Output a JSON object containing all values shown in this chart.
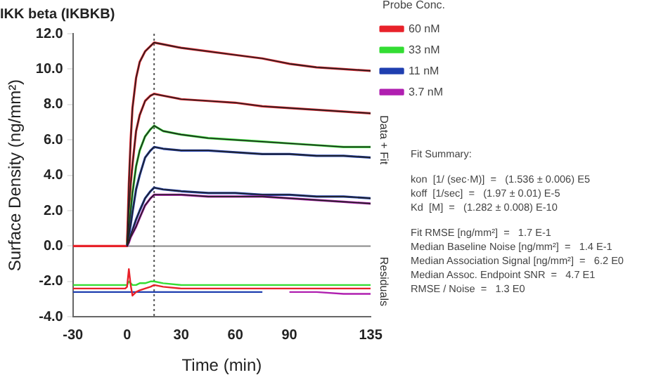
{
  "chart_data": {
    "type": "line",
    "title": "IKK beta (IKBKB)",
    "xlabel": "Time (min)",
    "ylabel": "Surface Density (ng/mm²)",
    "legend_title": "Probe Conc.",
    "legend": "top right",
    "grid": false,
    "marker": "none",
    "line_style": "solid",
    "x": [
      -30,
      -15,
      -1,
      0,
      1,
      2,
      3,
      5,
      7,
      10,
      13,
      15,
      20,
      30,
      45,
      60,
      75,
      90,
      105,
      120,
      135
    ],
    "xlim": [
      -30,
      135
    ],
    "xticks": [
      -30,
      0,
      30,
      60,
      90,
      135
    ],
    "ylim": [
      -4,
      12
    ],
    "yticks": [
      {
        "value": -4,
        "label": "-4.0"
      },
      {
        "value": -2,
        "label": "-2.0"
      },
      {
        "value": 0,
        "label": "0.0"
      },
      {
        "value": 2,
        "label": "2.0"
      },
      {
        "value": 4,
        "label": "4.0"
      },
      {
        "value": 6,
        "label": "6.0"
      },
      {
        "value": 8,
        "label": "8.0"
      },
      {
        "value": 10,
        "label": "10.0"
      },
      {
        "value": 12,
        "label": "12.0"
      }
    ],
    "ref_lines": [
      {
        "axis": "y",
        "value": 0,
        "color": "#888888",
        "line_style": "solid"
      },
      {
        "axis": "x",
        "value": 15,
        "color": "#555555",
        "line_style": "dotted"
      }
    ],
    "series": [
      {
        "name": "60 nM",
        "color": "#e8222a",
        "values": [
          0,
          0,
          0,
          0,
          3.5,
          6.0,
          7.8,
          9.5,
          10.4,
          11.0,
          11.3,
          11.5,
          11.4,
          11.2,
          11.0,
          10.8,
          10.6,
          10.3,
          10.1,
          10.0,
          9.9
        ]
      },
      {
        "color": "#e8222a",
        "values": [
          null,
          null,
          null,
          0,
          2.0,
          3.5,
          4.6,
          6.5,
          7.4,
          8.2,
          8.5,
          8.6,
          8.5,
          8.3,
          8.2,
          8.1,
          7.9,
          7.8,
          7.7,
          7.6,
          7.5
        ]
      },
      {
        "name": "33 nM",
        "color": "#33dd33",
        "values": [
          null,
          null,
          null,
          0,
          1.0,
          2.0,
          3.0,
          4.5,
          5.4,
          6.2,
          6.6,
          6.8,
          6.5,
          6.3,
          6.1,
          6.0,
          5.9,
          5.8,
          5.7,
          5.6,
          5.6
        ]
      },
      {
        "name": "11 nM",
        "color": "#1f3fb0",
        "values": [
          null,
          null,
          null,
          0,
          0.6,
          1.2,
          1.9,
          3.2,
          4.0,
          5.0,
          5.4,
          5.6,
          5.5,
          5.4,
          5.4,
          5.3,
          5.2,
          5.2,
          5.1,
          5.1,
          5.0
        ]
      },
      {
        "color": "#1f3fb0",
        "values": [
          null,
          null,
          null,
          0,
          0.3,
          0.6,
          0.9,
          1.5,
          2.0,
          2.7,
          3.1,
          3.3,
          3.2,
          3.1,
          3.0,
          3.0,
          2.9,
          2.9,
          2.8,
          2.8,
          2.7
        ]
      },
      {
        "name": "3.7 nM",
        "color": "#b01fb0",
        "values": [
          null,
          null,
          null,
          0,
          0.2,
          0.5,
          0.7,
          1.1,
          1.6,
          2.3,
          2.7,
          2.9,
          2.9,
          2.9,
          2.8,
          2.8,
          2.8,
          2.7,
          2.6,
          2.5,
          2.4
        ]
      },
      {
        "color": "#222222",
        "values": [
          null,
          null,
          null,
          0,
          3.5,
          6.0,
          7.8,
          9.5,
          10.4,
          11.0,
          11.3,
          11.5,
          11.4,
          11.2,
          11.0,
          10.8,
          10.6,
          10.3,
          10.1,
          10.0,
          9.9
        ]
      },
      {
        "color": "#222222",
        "values": [
          null,
          null,
          null,
          0,
          2.0,
          3.5,
          4.6,
          6.5,
          7.4,
          8.2,
          8.5,
          8.6,
          8.5,
          8.3,
          8.2,
          8.1,
          7.9,
          7.8,
          7.7,
          7.6,
          7.5
        ]
      },
      {
        "color": "#222222",
        "values": [
          null,
          null,
          null,
          0,
          1.0,
          2.0,
          3.0,
          4.5,
          5.4,
          6.2,
          6.6,
          6.8,
          6.5,
          6.3,
          6.1,
          6.0,
          5.9,
          5.8,
          5.7,
          5.6,
          5.6
        ]
      },
      {
        "color": "#222222",
        "values": [
          null,
          null,
          null,
          0,
          0.6,
          1.2,
          1.9,
          3.2,
          4.0,
          5.0,
          5.4,
          5.6,
          5.5,
          5.4,
          5.4,
          5.3,
          5.2,
          5.2,
          5.1,
          5.1,
          5.0
        ]
      },
      {
        "color": "#222222",
        "values": [
          null,
          null,
          null,
          0,
          0.3,
          0.6,
          0.9,
          1.5,
          2.0,
          2.7,
          3.1,
          3.3,
          3.2,
          3.1,
          3.0,
          3.0,
          2.9,
          2.9,
          2.8,
          2.8,
          2.7
        ]
      },
      {
        "color": "#222222",
        "values": [
          null,
          null,
          null,
          0,
          0.2,
          0.5,
          0.7,
          1.1,
          1.6,
          2.3,
          2.7,
          2.9,
          2.9,
          2.9,
          2.8,
          2.8,
          2.8,
          2.7,
          2.6,
          2.5,
          2.4
        ]
      },
      {
        "color": "#b01fb0",
        "values": [
          null,
          null,
          null,
          null,
          null,
          null,
          null,
          null,
          null,
          null,
          null,
          null,
          null,
          null,
          null,
          null,
          null,
          -2.6,
          -2.6,
          -2.7,
          -2.7
        ]
      },
      {
        "color": "#1f3fb0",
        "values": [
          -2.6,
          -2.6,
          -2.6,
          -2.6,
          -2.6,
          -2.6,
          -2.6,
          -2.6,
          -2.6,
          -2.6,
          -2.6,
          -2.6,
          -2.6,
          -2.6,
          -2.6,
          -2.6,
          -2.6,
          null,
          null,
          null,
          null
        ]
      },
      {
        "color": "#33dd33",
        "values": [
          -2.2,
          -2.2,
          -2.2,
          -2.2,
          -2.0,
          -2.1,
          -2.2,
          -2.2,
          -2.1,
          -2.1,
          -2.0,
          -2.0,
          -2.1,
          -2.2,
          -2.2,
          -2.2,
          -2.2,
          -2.2,
          -2.2,
          -2.2,
          -2.2
        ]
      },
      {
        "color": "#e8222a",
        "values": [
          -2.4,
          -2.4,
          -2.4,
          -2.3,
          -1.3,
          -2.2,
          -2.8,
          -2.6,
          -2.5,
          -2.4,
          -2.3,
          -2.2,
          -2.3,
          -2.4,
          -2.4,
          -2.4,
          -2.4,
          -2.4,
          -2.4,
          -2.4,
          -2.4
        ]
      }
    ],
    "annotations": [
      "Data + Fit",
      "Residuals",
      "Fit Summary:",
      "kon  [1/ (sec·M)]  =   (1.536 ± 0.006) E5",
      "koff  [1/sec]  =   (1.97 ± 0.01) E-5",
      "Kd  [M]  =   (1.282 ± 0.008) E-10",
      "Fit RMSE [ng/mm²]  =   1.7 E-1",
      "Median Baseline Noise [ng/mm²]  =   1.4 E-1",
      "Median Association Signal [ng/mm²]  =   6.2 E0",
      "Median Assoc. Endpoint SNR  =   4.7 E1",
      "RMSE / Noise  =   1.3 E0"
    ]
  }
}
